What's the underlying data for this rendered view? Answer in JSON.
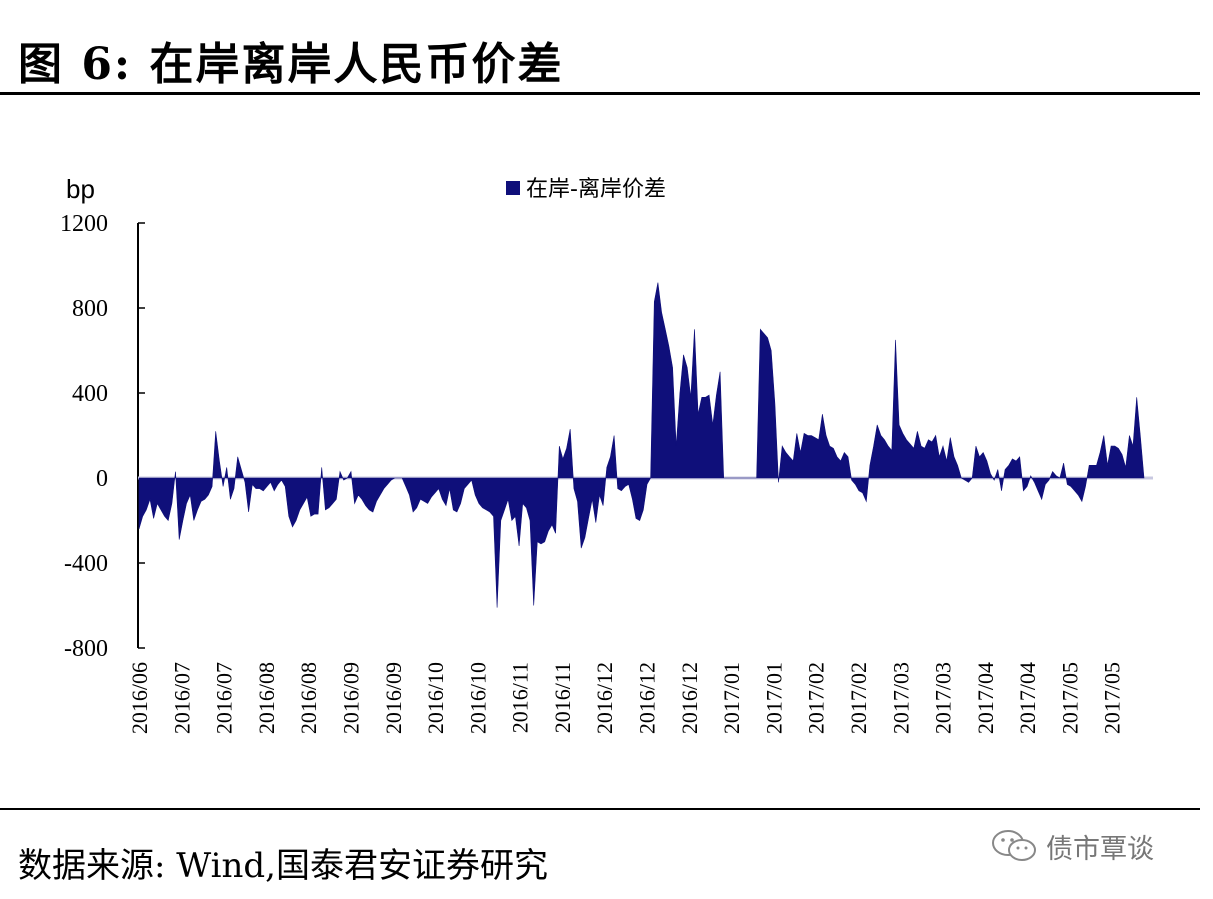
{
  "header": {
    "title": "图  6:  在岸离岸人民币价差"
  },
  "footer": {
    "source": "数据来源:  Wind,国泰君安证券研究"
  },
  "watermark": {
    "text": "债市覃谈",
    "icon": "wechat-icon"
  },
  "colors": {
    "series": "#0f0f7a",
    "axis": "#000000",
    "zero_line": "#c8c8e0"
  },
  "chart_data": {
    "type": "area",
    "ylabel": "bp",
    "ylim": [
      -800,
      1200
    ],
    "yticks": [
      1200,
      800,
      400,
      0,
      -400,
      -800
    ],
    "legend_position": "top-center",
    "grid": false,
    "x_tick_labels": [
      "2016/06",
      "2016/07",
      "2016/07",
      "2016/08",
      "2016/08",
      "2016/09",
      "2016/09",
      "2016/10",
      "2016/10",
      "2016/11",
      "2016/11",
      "2016/12",
      "2016/12",
      "2016/12",
      "2017/01",
      "2017/01",
      "2017/02",
      "2017/02",
      "2017/03",
      "2017/03",
      "2017/04",
      "2017/04",
      "2017/05",
      "2017/05"
    ],
    "series": [
      {
        "name": "在岸-离岸价差",
        "values": [
          -240,
          -180,
          -150,
          -100,
          -190,
          -120,
          -150,
          -180,
          -200,
          -120,
          30,
          -290,
          -200,
          -120,
          -80,
          -200,
          -150,
          -110,
          -100,
          -80,
          -40,
          220,
          80,
          -40,
          50,
          -100,
          -50,
          100,
          40,
          -20,
          -160,
          -30,
          -50,
          -50,
          -60,
          -40,
          -20,
          -60,
          -30,
          -10,
          -40,
          -180,
          -230,
          -200,
          -150,
          -120,
          -90,
          -180,
          -170,
          -170,
          50,
          -150,
          -140,
          -120,
          -100,
          30,
          -10,
          0,
          30,
          -120,
          -80,
          -100,
          -130,
          -150,
          -160,
          -110,
          -80,
          -50,
          -30,
          -10,
          0,
          0,
          0,
          -40,
          -80,
          -160,
          -140,
          -100,
          -110,
          -120,
          -90,
          -70,
          -50,
          -100,
          -130,
          -50,
          -150,
          -160,
          -120,
          -50,
          -30,
          -10,
          -80,
          -120,
          -140,
          -150,
          -160,
          -180,
          -610,
          -200,
          -150,
          -100,
          -200,
          -180,
          -320,
          -120,
          -140,
          -200,
          -600,
          -300,
          -310,
          -300,
          -250,
          -220,
          -260,
          150,
          90,
          140,
          230,
          -50,
          -110,
          -330,
          -280,
          -190,
          -100,
          -210,
          -80,
          -130,
          50,
          100,
          200,
          -50,
          -60,
          -40,
          -30,
          -100,
          -190,
          -200,
          -150,
          -30,
          0,
          830,
          920,
          780,
          700,
          620,
          520,
          150,
          400,
          580,
          520,
          380,
          700,
          300,
          380,
          380,
          390,
          250,
          390,
          500,
          0,
          0,
          0,
          0,
          0,
          0,
          0,
          0,
          0,
          0,
          700,
          680,
          660,
          600,
          350,
          -20,
          150,
          120,
          100,
          80,
          210,
          120,
          210,
          200,
          200,
          190,
          180,
          300,
          200,
          150,
          140,
          100,
          80,
          120,
          100,
          -10,
          -30,
          -60,
          -70,
          -110,
          60,
          150,
          250,
          200,
          180,
          150,
          130,
          650,
          250,
          210,
          180,
          160,
          140,
          220,
          150,
          140,
          180,
          170,
          200,
          100,
          150,
          80,
          190,
          100,
          60,
          0,
          -10,
          -20,
          0,
          150,
          100,
          120,
          80,
          20,
          -10,
          40,
          -60,
          40,
          60,
          90,
          80,
          100,
          -60,
          -40,
          10,
          -20,
          -60,
          -100,
          -30,
          -10,
          30,
          10,
          0,
          70,
          -30,
          -40,
          -60,
          -80,
          -110,
          -40,
          60,
          60,
          60,
          120,
          200,
          60,
          150,
          150,
          140,
          110,
          50,
          200,
          150,
          380,
          200,
          0
        ]
      }
    ]
  }
}
